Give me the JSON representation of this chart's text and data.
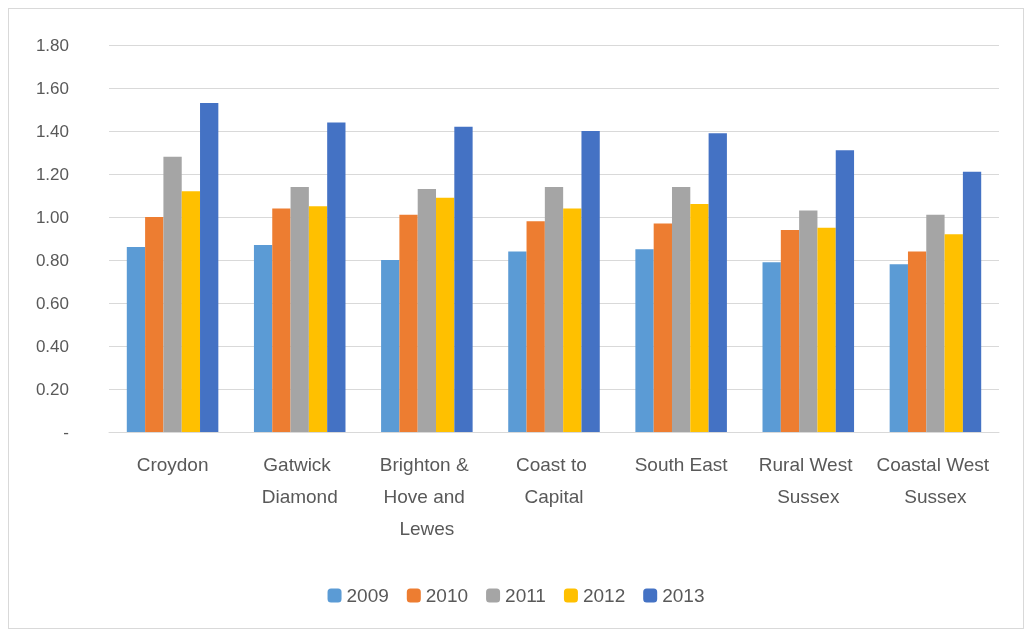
{
  "chart_data": {
    "type": "bar",
    "categories": [
      "Croydon",
      "Gatwick Diamond",
      "Brighton & Hove and Lewes",
      "Coast to Capital",
      "South East",
      "Rural West Sussex",
      "Coastal West Sussex"
    ],
    "series": [
      {
        "name": "2009",
        "color": "#5b9bd5",
        "values": [
          0.86,
          0.87,
          0.8,
          0.84,
          0.85,
          0.79,
          0.78
        ]
      },
      {
        "name": "2010",
        "color": "#ed7d31",
        "values": [
          1.0,
          1.04,
          1.01,
          0.98,
          0.97,
          0.94,
          0.84
        ]
      },
      {
        "name": "2011",
        "color": "#a5a5a5",
        "values": [
          1.28,
          1.14,
          1.13,
          1.14,
          1.14,
          1.03,
          1.01
        ]
      },
      {
        "name": "2012",
        "color": "#ffc000",
        "values": [
          1.12,
          1.05,
          1.09,
          1.04,
          1.06,
          0.95,
          0.92
        ]
      },
      {
        "name": "2013",
        "color": "#4472c4",
        "values": [
          1.53,
          1.44,
          1.42,
          1.4,
          1.39,
          1.31,
          1.21
        ]
      }
    ],
    "ylim": [
      0,
      1.8
    ],
    "yticks": [
      {
        "value": 0,
        "label": "-"
      },
      {
        "value": 0.2,
        "label": "0.20"
      },
      {
        "value": 0.4,
        "label": "0.40"
      },
      {
        "value": 0.6,
        "label": "0.60"
      },
      {
        "value": 0.8,
        "label": "0.80"
      },
      {
        "value": 1.0,
        "label": "1.00"
      },
      {
        "value": 1.2,
        "label": "1.20"
      },
      {
        "value": 1.4,
        "label": "1.40"
      },
      {
        "value": 1.6,
        "label": "1.60"
      },
      {
        "value": 1.8,
        "label": "1.80"
      }
    ],
    "grid": "y",
    "legend": "bottom"
  }
}
